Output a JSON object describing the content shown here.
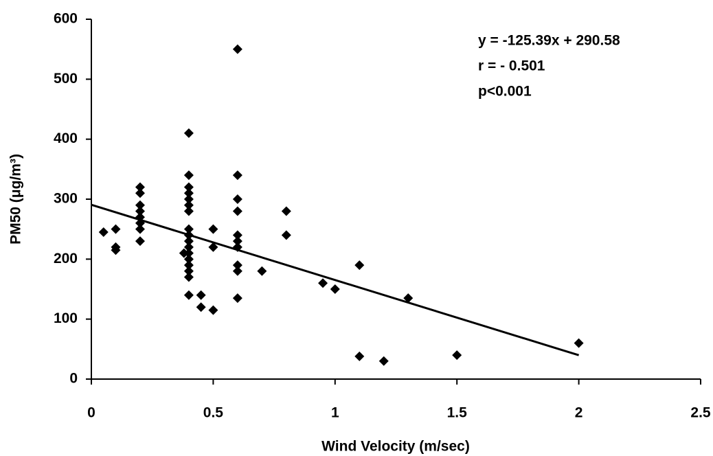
{
  "chart_data": {
    "type": "scatter",
    "x_label": "Wind Velocity (m/sec)",
    "y_label": "PM50 (μg/m³)",
    "annotations": [
      "y = -125.39x + 290.58",
      "r = - 0.501",
      "p<0.001"
    ],
    "xlim": [
      0,
      2.5
    ],
    "xticks": [
      0,
      0.5,
      1,
      1.5,
      2,
      2.5
    ],
    "ylim": [
      0,
      600
    ],
    "yticks": [
      0,
      100,
      200,
      300,
      400,
      500,
      600
    ],
    "marker_color": "#000000",
    "x": [
      0.05,
      0.1,
      0.1,
      0.1,
      0.2,
      0.2,
      0.2,
      0.2,
      0.2,
      0.2,
      0.2,
      0.2,
      0.38,
      0.4,
      0.4,
      0.4,
      0.4,
      0.4,
      0.4,
      0.4,
      0.4,
      0.4,
      0.4,
      0.4,
      0.4,
      0.4,
      0.4,
      0.4,
      0.4,
      0.4,
      0.45,
      0.45,
      0.5,
      0.5,
      0.5,
      0.6,
      0.6,
      0.6,
      0.6,
      0.6,
      0.6,
      0.6,
      0.6,
      0.6,
      0.6,
      0.7,
      0.8,
      0.8,
      0.95,
      1.0,
      1.1,
      1.1,
      1.2,
      1.3,
      1.5,
      2.0
    ],
    "values": [
      245,
      250,
      220,
      215,
      320,
      310,
      290,
      280,
      270,
      260,
      250,
      230,
      210,
      410,
      340,
      320,
      310,
      300,
      290,
      280,
      250,
      240,
      230,
      220,
      210,
      200,
      190,
      180,
      170,
      140,
      140,
      120,
      250,
      220,
      115,
      550,
      340,
      300,
      280,
      240,
      230,
      220,
      190,
      180,
      135,
      180,
      280,
      240,
      160,
      150,
      190,
      38,
      30,
      135,
      40,
      60
    ],
    "trendline": {
      "slope": -125.39,
      "intercept": 290.58,
      "x": [
        0,
        2
      ],
      "color": "#000000"
    }
  }
}
